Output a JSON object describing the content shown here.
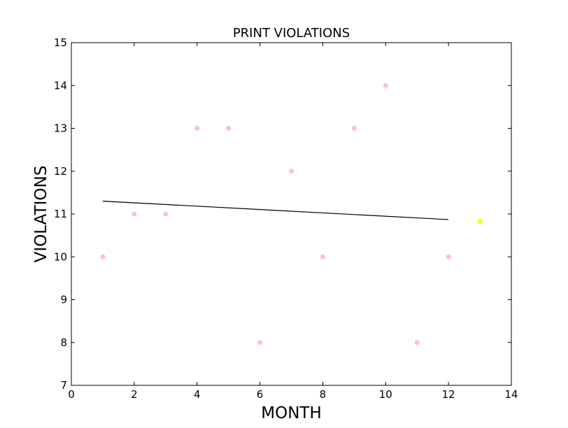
{
  "chart_data": {
    "type": "scatter",
    "title": "PRINT VIOLATIONS",
    "xlabel": "MONTH",
    "ylabel": "VIOLATIONS",
    "xlim": [
      0,
      14
    ],
    "ylim": [
      7,
      15
    ],
    "xticks": [
      0,
      2,
      4,
      6,
      8,
      10,
      12,
      14
    ],
    "yticks": [
      7,
      8,
      9,
      10,
      11,
      12,
      13,
      14,
      15
    ],
    "grid": false,
    "series": [
      {
        "type": "scatter",
        "color": "#ffc0cb",
        "points": [
          {
            "x": 1,
            "y": 10
          },
          {
            "x": 2,
            "y": 11
          },
          {
            "x": 3,
            "y": 11
          },
          {
            "x": 4,
            "y": 13
          },
          {
            "x": 5,
            "y": 13
          },
          {
            "x": 6,
            "y": 8
          },
          {
            "x": 7,
            "y": 12
          },
          {
            "x": 8,
            "y": 10
          },
          {
            "x": 9,
            "y": 13
          },
          {
            "x": 10,
            "y": 14
          },
          {
            "x": 11,
            "y": 8
          },
          {
            "x": 12,
            "y": 10
          }
        ]
      },
      {
        "type": "line",
        "color": "#000000",
        "points": [
          {
            "x": 1,
            "y": 11.3
          },
          {
            "x": 12,
            "y": 10.87
          }
        ]
      },
      {
        "type": "scatter",
        "color": "#ffff00",
        "points": [
          {
            "x": 13,
            "y": 10.83
          }
        ]
      }
    ]
  }
}
